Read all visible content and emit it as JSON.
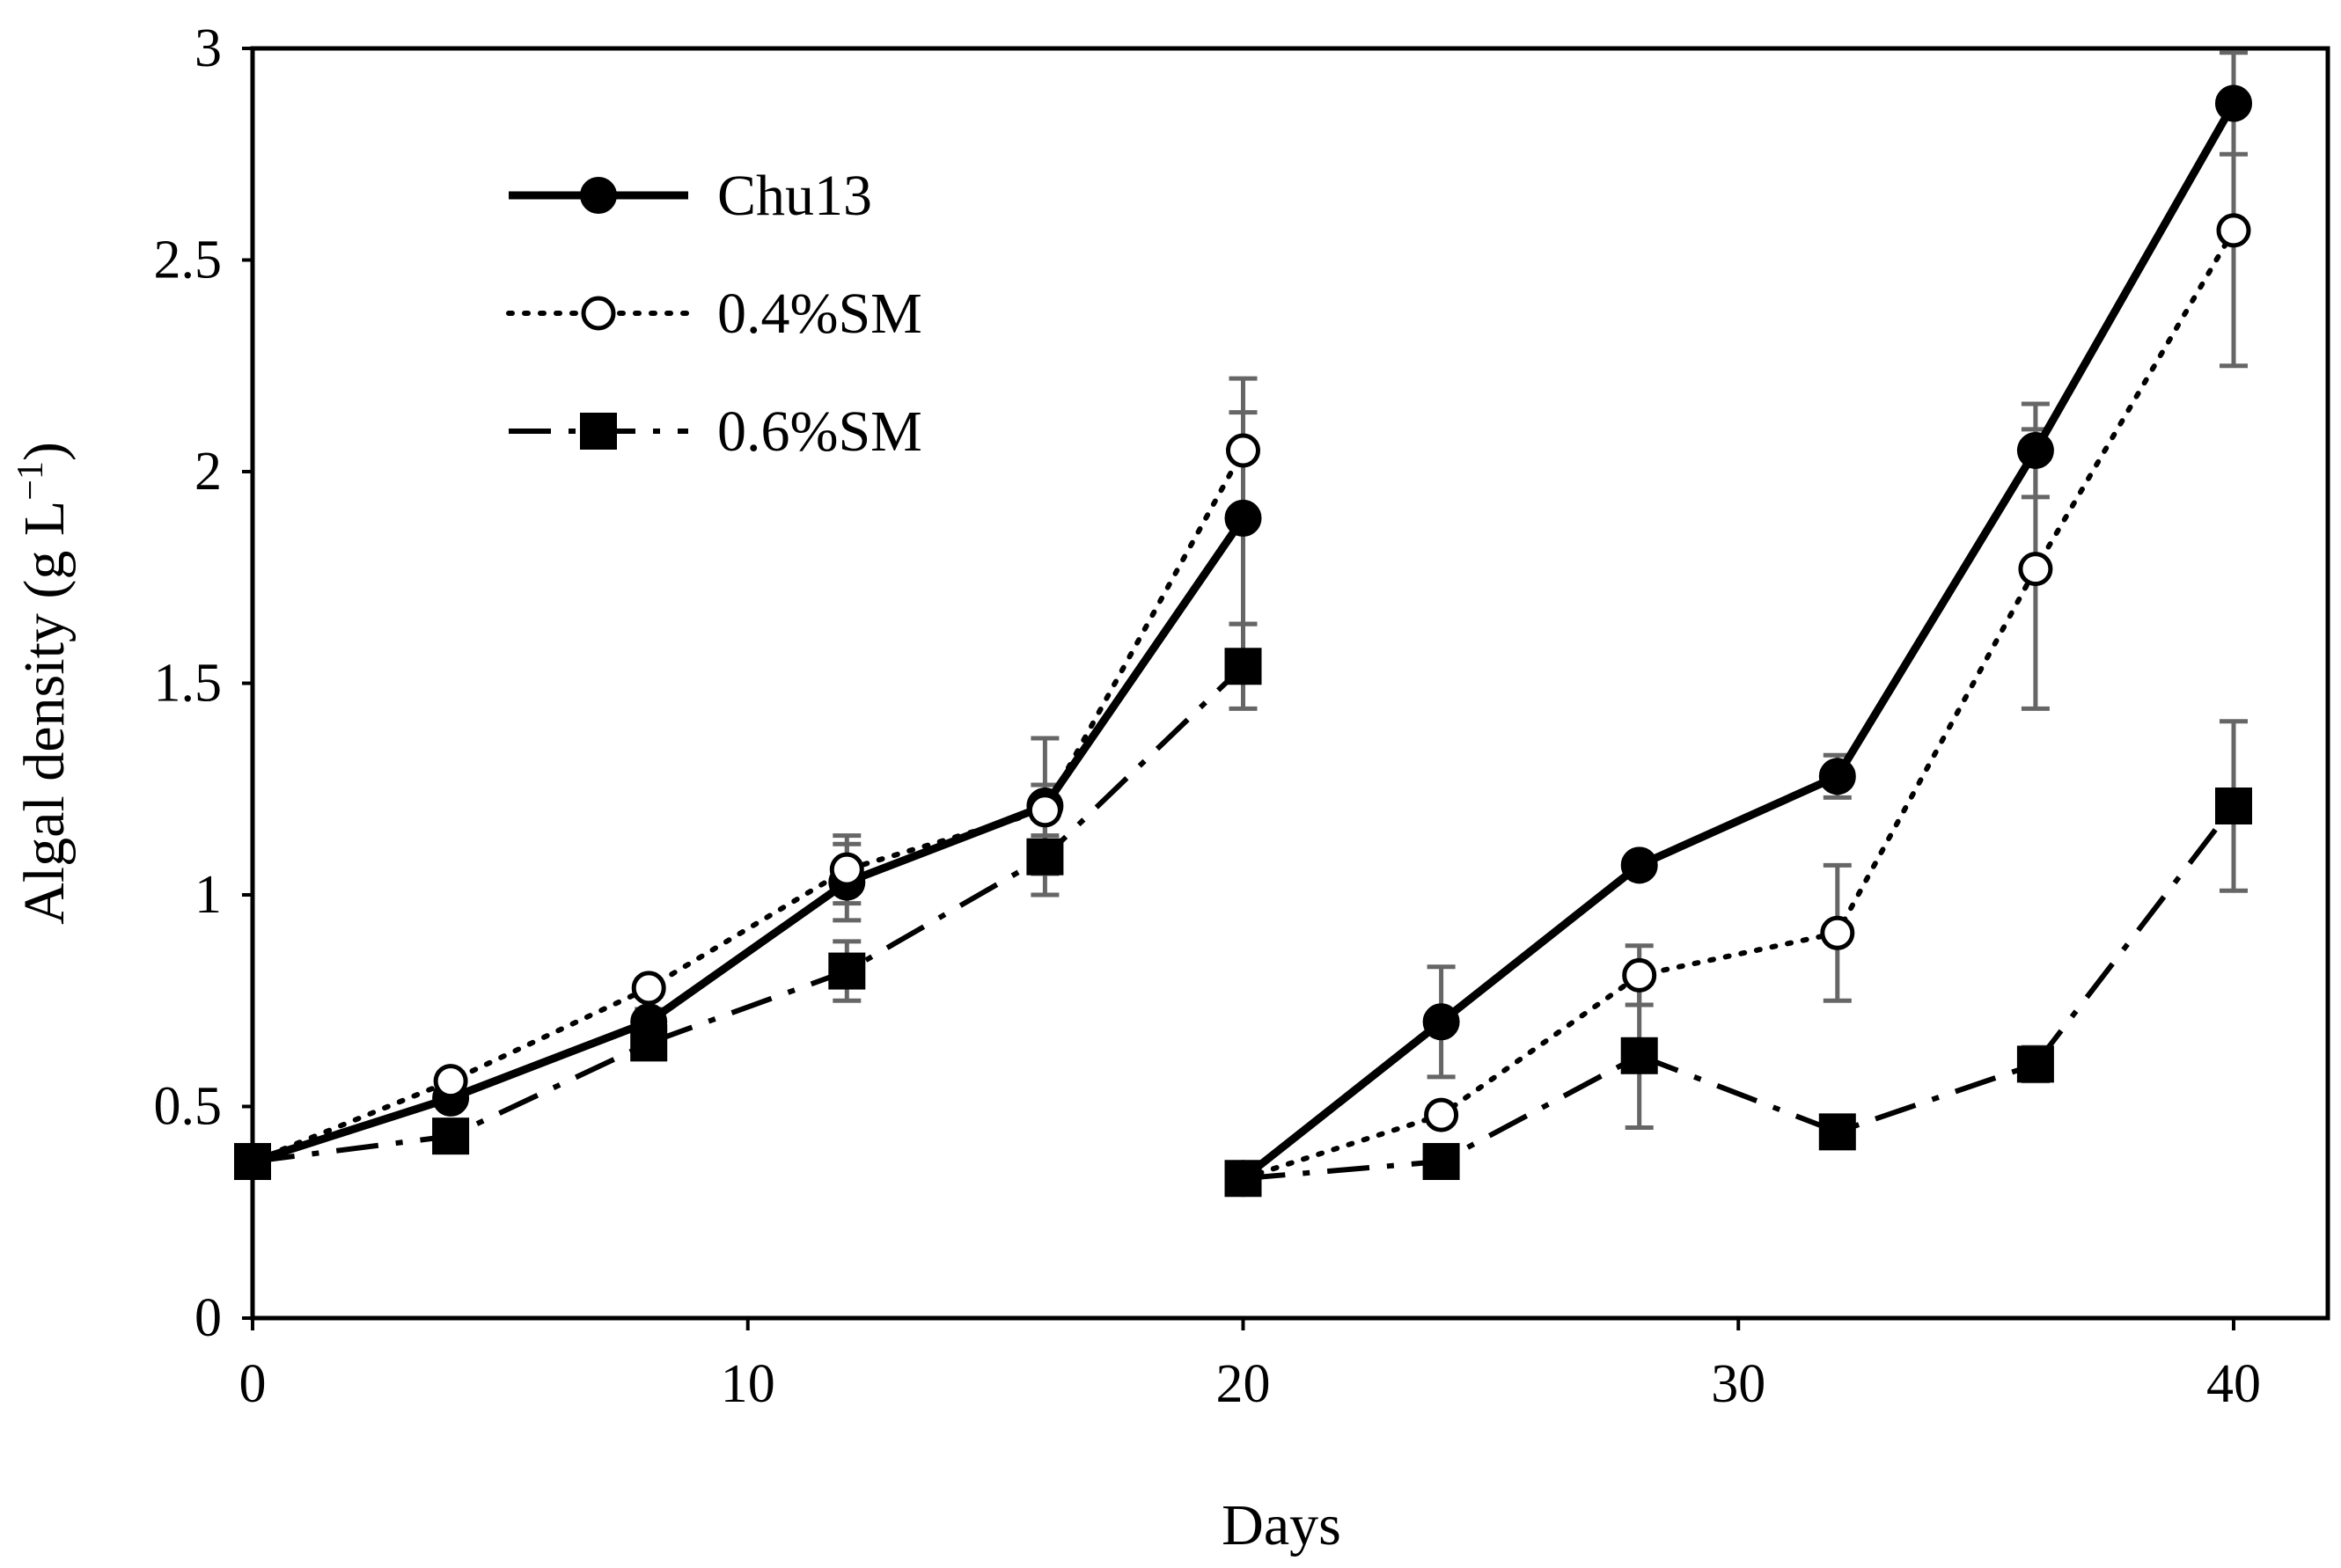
{
  "chart_data": {
    "type": "line",
    "title": "",
    "xlabel": "Days",
    "ylabel": "Algal density (g L",
    "ylabel_sup": "−1",
    "ylabel_close": ")",
    "xlim": [
      0,
      41
    ],
    "ylim": [
      0,
      3
    ],
    "xticks": [
      0,
      10,
      20,
      30,
      40
    ],
    "xtick_labels": [
      "0",
      "10",
      "20",
      "30",
      "40"
    ],
    "yticks": [
      0,
      0.5,
      1,
      1.5,
      2,
      2.5,
      3
    ],
    "ytick_labels": [
      "0",
      "0.5",
      "1",
      "1.5",
      "2",
      "2.5",
      "3"
    ],
    "grid": false,
    "legend_position": "top-left",
    "series": [
      {
        "name": "Chu13",
        "style": "solid",
        "marker": "filled-circle",
        "color": "#000000",
        "segments": [
          [
            {
              "x": 0,
              "y": 0.37,
              "err": 0
            },
            {
              "x": 4,
              "y": 0.52,
              "err": 0.02
            },
            {
              "x": 8,
              "y": 0.7,
              "err": 0.03
            },
            {
              "x": 12,
              "y": 1.03,
              "err": 0.09
            },
            {
              "x": 16,
              "y": 1.21,
              "err": 0.16
            },
            {
              "x": 20,
              "y": 1.89,
              "err": 0.25
            }
          ],
          [
            {
              "x": 20,
              "y": 0.33,
              "err": 0
            },
            {
              "x": 24,
              "y": 0.7,
              "err": 0.13
            },
            {
              "x": 28,
              "y": 1.07,
              "err": 0.02
            },
            {
              "x": 32,
              "y": 1.28,
              "err": 0.05
            },
            {
              "x": 36,
              "y": 2.05,
              "err": 0.11
            },
            {
              "x": 40,
              "y": 2.87,
              "err": 0.12
            }
          ]
        ]
      },
      {
        "name": "0.4%SM",
        "style": "dotted",
        "marker": "open-circle",
        "color": "#000000",
        "segments": [
          [
            {
              "x": 0,
              "y": 0.37,
              "err": 0
            },
            {
              "x": 4,
              "y": 0.56,
              "err": 0.02
            },
            {
              "x": 8,
              "y": 0.78,
              "err": 0.02
            },
            {
              "x": 12,
              "y": 1.06,
              "err": 0.08
            },
            {
              "x": 16,
              "y": 1.2,
              "err": 0.06
            },
            {
              "x": 20,
              "y": 2.05,
              "err": 0.17
            }
          ],
          [
            {
              "x": 20,
              "y": 0.33,
              "err": 0
            },
            {
              "x": 24,
              "y": 0.48,
              "err": 0.02
            },
            {
              "x": 28,
              "y": 0.81,
              "err": 0.07
            },
            {
              "x": 32,
              "y": 0.91,
              "err": 0.16
            },
            {
              "x": 36,
              "y": 1.77,
              "err": 0.33
            },
            {
              "x": 40,
              "y": 2.57,
              "err": 0.32
            }
          ]
        ]
      },
      {
        "name": "0.6%SM",
        "style": "dash-dot",
        "marker": "filled-square",
        "color": "#000000",
        "segments": [
          [
            {
              "x": 0,
              "y": 0.37,
              "err": 0
            },
            {
              "x": 4,
              "y": 0.43,
              "err": 0.02
            },
            {
              "x": 8,
              "y": 0.65,
              "err": 0.02
            },
            {
              "x": 12,
              "y": 0.82,
              "err": 0.07
            },
            {
              "x": 16,
              "y": 1.09,
              "err": 0.09
            },
            {
              "x": 20,
              "y": 1.54,
              "err": 0.1
            }
          ],
          [
            {
              "x": 20,
              "y": 0.33,
              "err": 0
            },
            {
              "x": 24,
              "y": 0.37,
              "err": 0.02
            },
            {
              "x": 28,
              "y": 0.62,
              "err": 0.17
            },
            {
              "x": 32,
              "y": 0.44,
              "err": 0.02
            },
            {
              "x": 36,
              "y": 0.6,
              "err": 0.04
            },
            {
              "x": 40,
              "y": 1.21,
              "err": 0.2
            }
          ]
        ]
      }
    ]
  }
}
